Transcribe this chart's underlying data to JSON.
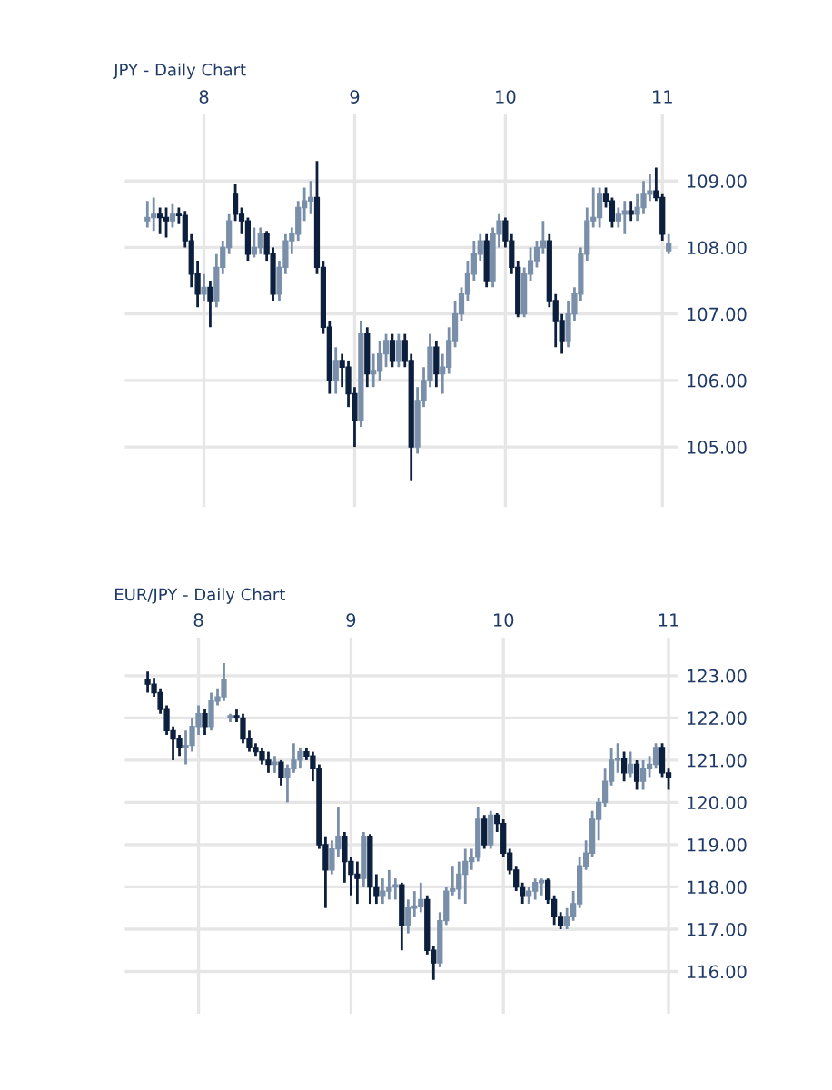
{
  "chart_data": [
    {
      "type": "candlestick",
      "title": "JPY - Daily Chart",
      "categories": [
        null,
        null,
        null,
        null,
        null,
        null,
        null,
        null,
        null,
        "8",
        null,
        null,
        null,
        null,
        null,
        null,
        null,
        null,
        null,
        null,
        null,
        null,
        null,
        null,
        null,
        null,
        null,
        null,
        null,
        null,
        null,
        null,
        null,
        "9",
        null,
        null,
        null,
        null,
        null,
        null,
        null,
        null,
        null,
        null,
        null,
        null,
        null,
        null,
        null,
        null,
        null,
        null,
        null,
        null,
        null,
        null,
        null,
        "10",
        null,
        null,
        null,
        null,
        null,
        null,
        null,
        null,
        null,
        null,
        null,
        null,
        null,
        null,
        null,
        null,
        null,
        null,
        null,
        null,
        null,
        null,
        null,
        null,
        "11",
        null
      ],
      "ohlc": [
        [
          108.4,
          108.7,
          108.3,
          108.45
        ],
        [
          108.45,
          108.75,
          108.25,
          108.5
        ],
        [
          108.5,
          108.6,
          108.2,
          108.45
        ],
        [
          108.45,
          108.6,
          108.15,
          108.4
        ],
        [
          108.4,
          108.65,
          108.3,
          108.5
        ],
        [
          108.5,
          108.6,
          108.35,
          108.48
        ],
        [
          108.48,
          108.55,
          108.0,
          108.1
        ],
        [
          108.1,
          108.2,
          107.4,
          107.6
        ],
        [
          107.6,
          107.8,
          107.1,
          107.3
        ],
        [
          107.3,
          107.6,
          107.2,
          107.4
        ],
        [
          107.4,
          107.5,
          106.8,
          107.2
        ],
        [
          107.2,
          107.9,
          107.1,
          107.7
        ],
        [
          107.7,
          108.1,
          107.6,
          108.0
        ],
        [
          108.0,
          108.5,
          107.9,
          108.4
        ],
        [
          108.8,
          108.95,
          108.4,
          108.5
        ],
        [
          108.5,
          108.6,
          108.2,
          108.4
        ],
        [
          108.4,
          108.45,
          107.8,
          107.9
        ],
        [
          107.9,
          108.3,
          107.85,
          108.0
        ],
        [
          108.0,
          108.3,
          107.9,
          108.2
        ],
        [
          108.2,
          108.25,
          107.8,
          107.9
        ],
        [
          107.9,
          108.0,
          107.2,
          107.3
        ],
        [
          107.3,
          107.8,
          107.2,
          107.7
        ],
        [
          107.7,
          108.2,
          107.6,
          108.1
        ],
        [
          108.1,
          108.3,
          107.9,
          108.2
        ],
        [
          108.2,
          108.7,
          108.1,
          108.6
        ],
        [
          108.6,
          108.9,
          108.4,
          108.7
        ],
        [
          108.7,
          109.0,
          108.5,
          108.75
        ],
        [
          108.75,
          109.3,
          107.6,
          107.7
        ],
        [
          107.7,
          107.8,
          106.7,
          106.8
        ],
        [
          106.8,
          106.9,
          105.8,
          106.0
        ],
        [
          106.0,
          106.5,
          105.8,
          106.3
        ],
        [
          106.3,
          106.4,
          105.9,
          106.2
        ],
        [
          106.2,
          106.3,
          105.6,
          105.8
        ],
        [
          105.8,
          105.9,
          105.0,
          105.4
        ],
        [
          105.4,
          106.9,
          105.3,
          106.7
        ],
        [
          106.7,
          106.8,
          105.9,
          106.1
        ],
        [
          106.1,
          106.4,
          105.9,
          106.15
        ],
        [
          106.15,
          106.6,
          106.0,
          106.4
        ],
        [
          106.4,
          106.7,
          106.2,
          106.6
        ],
        [
          106.6,
          106.7,
          106.2,
          106.3
        ],
        [
          106.3,
          106.7,
          106.2,
          106.6
        ],
        [
          106.6,
          106.7,
          106.2,
          106.3
        ],
        [
          106.3,
          106.4,
          104.5,
          105.0
        ],
        [
          105.0,
          105.9,
          104.9,
          105.7
        ],
        [
          105.7,
          106.2,
          105.6,
          106.0
        ],
        [
          106.0,
          106.7,
          105.9,
          106.5
        ],
        [
          106.5,
          106.6,
          105.9,
          106.1
        ],
        [
          106.1,
          106.4,
          105.8,
          106.2
        ],
        [
          106.2,
          106.8,
          106.1,
          106.6
        ],
        [
          106.6,
          107.2,
          106.5,
          107.0
        ],
        [
          107.0,
          107.4,
          106.9,
          107.3
        ],
        [
          107.3,
          107.8,
          107.2,
          107.6
        ],
        [
          107.6,
          108.1,
          107.5,
          107.9
        ],
        [
          107.9,
          108.2,
          107.8,
          108.1
        ],
        [
          108.1,
          108.2,
          107.4,
          107.5
        ],
        [
          107.5,
          108.3,
          107.4,
          108.2
        ],
        [
          108.2,
          108.5,
          108.0,
          108.4
        ],
        [
          108.4,
          108.45,
          108.0,
          108.1
        ],
        [
          108.1,
          108.2,
          107.6,
          107.7
        ],
        [
          107.7,
          107.8,
          106.95,
          107.0
        ],
        [
          107.0,
          107.7,
          106.95,
          107.6
        ],
        [
          107.6,
          108.0,
          107.5,
          107.8
        ],
        [
          107.8,
          108.1,
          107.7,
          108.0
        ],
        [
          108.0,
          108.4,
          107.9,
          108.1
        ],
        [
          108.1,
          108.2,
          107.1,
          107.2
        ],
        [
          107.2,
          107.3,
          106.5,
          106.9
        ],
        [
          106.9,
          107.0,
          106.4,
          106.6
        ],
        [
          106.6,
          107.2,
          106.5,
          107.0
        ],
        [
          107.0,
          107.4,
          106.9,
          107.3
        ],
        [
          107.3,
          108.0,
          107.2,
          107.9
        ],
        [
          107.9,
          108.6,
          107.8,
          108.4
        ],
        [
          108.4,
          108.9,
          108.3,
          108.45
        ],
        [
          108.45,
          108.9,
          108.3,
          108.8
        ],
        [
          108.8,
          108.9,
          108.6,
          108.7
        ],
        [
          108.7,
          108.75,
          108.3,
          108.4
        ],
        [
          108.4,
          108.6,
          108.3,
          108.5
        ],
        [
          108.5,
          108.7,
          108.2,
          108.55
        ],
        [
          108.55,
          108.7,
          108.4,
          108.5
        ],
        [
          108.5,
          108.8,
          108.4,
          108.6
        ],
        [
          108.6,
          109.0,
          108.5,
          108.8
        ],
        [
          108.8,
          109.1,
          108.7,
          108.85
        ],
        [
          108.85,
          109.2,
          108.7,
          108.75
        ],
        [
          108.75,
          108.8,
          108.1,
          108.2
        ],
        [
          107.95,
          108.2,
          107.9,
          108.05
        ]
      ],
      "colors": [
        "#7a8fa9",
        "#7a8fa9",
        "#0c1f3d",
        "#0c1f3d",
        "#7a8fa9",
        "#0c1f3d",
        "#0c1f3d",
        "#0c1f3d",
        "#0c1f3d",
        "#7a8fa9",
        "#0c1f3d",
        "#7a8fa9",
        "#7a8fa9",
        "#7a8fa9",
        "#0c1f3d",
        "#0c1f3d",
        "#0c1f3d",
        "#7a8fa9",
        "#7a8fa9",
        "#0c1f3d",
        "#0c1f3d",
        "#7a8fa9",
        "#7a8fa9",
        "#7a8fa9",
        "#7a8fa9",
        "#7a8fa9",
        "#7a8fa9",
        "#0c1f3d",
        "#0c1f3d",
        "#0c1f3d",
        "#7a8fa9",
        "#0c1f3d",
        "#0c1f3d",
        "#0c1f3d",
        "#7a8fa9",
        "#0c1f3d",
        "#7a8fa9",
        "#7a8fa9",
        "#7a8fa9",
        "#0c1f3d",
        "#7a8fa9",
        "#0c1f3d",
        "#0c1f3d",
        "#7a8fa9",
        "#7a8fa9",
        "#7a8fa9",
        "#0c1f3d",
        "#7a8fa9",
        "#7a8fa9",
        "#7a8fa9",
        "#7a8fa9",
        "#7a8fa9",
        "#7a8fa9",
        "#7a8fa9",
        "#0c1f3d",
        "#7a8fa9",
        "#7a8fa9",
        "#0c1f3d",
        "#0c1f3d",
        "#0c1f3d",
        "#7a8fa9",
        "#7a8fa9",
        "#7a8fa9",
        "#7a8fa9",
        "#0c1f3d",
        "#0c1f3d",
        "#0c1f3d",
        "#7a8fa9",
        "#7a8fa9",
        "#7a8fa9",
        "#7a8fa9",
        "#7a8fa9",
        "#7a8fa9",
        "#0c1f3d",
        "#0c1f3d",
        "#7a8fa9",
        "#7a8fa9",
        "#0c1f3d",
        "#7a8fa9",
        "#7a8fa9",
        "#7a8fa9",
        "#0c1f3d",
        "#0c1f3d",
        "#7a8fa9"
      ],
      "ylim": [
        104.1,
        110.0
      ],
      "yticks": [
        {
          "value": 105,
          "label": "105.00"
        },
        {
          "value": 106,
          "label": "106.00"
        },
        {
          "value": 107,
          "label": "107.00"
        },
        {
          "value": 108,
          "label": "108.00"
        },
        {
          "value": 109,
          "label": "109.00"
        }
      ],
      "grid": true
    },
    {
      "type": "candlestick",
      "title": "EUR/JPY - Daily Chart",
      "categories": [
        null,
        null,
        null,
        null,
        null,
        null,
        null,
        null,
        "8",
        null,
        null,
        null,
        null,
        null,
        null,
        null,
        null,
        null,
        null,
        null,
        null,
        null,
        null,
        null,
        null,
        null,
        null,
        null,
        null,
        null,
        null,
        null,
        "9",
        null,
        null,
        null,
        null,
        null,
        null,
        null,
        null,
        null,
        null,
        null,
        null,
        null,
        null,
        null,
        null,
        null,
        null,
        null,
        null,
        null,
        null,
        null,
        "10",
        null,
        null,
        null,
        null,
        null,
        null,
        null,
        null,
        null,
        null,
        null,
        null,
        null,
        null,
        null,
        null,
        null,
        null,
        null,
        null,
        null,
        null,
        null,
        null,
        null,
        "11"
      ],
      "ohlc": [
        [
          122.9,
          123.1,
          122.6,
          122.8
        ],
        [
          122.8,
          122.95,
          122.5,
          122.6
        ],
        [
          122.6,
          122.7,
          122.1,
          122.2
        ],
        [
          122.2,
          122.3,
          121.6,
          121.7
        ],
        [
          121.7,
          121.8,
          121.0,
          121.5
        ],
        [
          121.5,
          121.6,
          121.1,
          121.3
        ],
        [
          121.3,
          121.7,
          120.9,
          121.35
        ],
        [
          121.35,
          122.0,
          121.2,
          121.8
        ],
        [
          121.8,
          122.3,
          121.6,
          122.1
        ],
        [
          122.1,
          122.2,
          121.6,
          121.8
        ],
        [
          121.8,
          122.6,
          121.7,
          122.4
        ],
        [
          122.4,
          122.7,
          122.3,
          122.5
        ],
        [
          122.5,
          123.3,
          122.4,
          122.9
        ],
        [
          122.0,
          122.1,
          121.9,
          122.05
        ],
        [
          122.05,
          122.2,
          121.9,
          122.0
        ],
        [
          122.0,
          122.1,
          121.4,
          121.5
        ],
        [
          121.5,
          121.7,
          121.2,
          121.3
        ],
        [
          121.3,
          121.4,
          121.1,
          121.2
        ],
        [
          121.2,
          121.3,
          120.9,
          121.0
        ],
        [
          121.0,
          121.2,
          120.7,
          120.9
        ],
        [
          120.9,
          121.1,
          120.7,
          120.95
        ],
        [
          120.95,
          121.0,
          120.4,
          120.6
        ],
        [
          120.6,
          120.9,
          120.0,
          120.8
        ],
        [
          120.8,
          121.4,
          120.7,
          121.0
        ],
        [
          121.0,
          121.3,
          120.8,
          121.2
        ],
        [
          121.2,
          121.3,
          121.0,
          121.1
        ],
        [
          121.1,
          121.2,
          120.5,
          120.8
        ],
        [
          120.8,
          120.9,
          118.9,
          119.0
        ],
        [
          119.0,
          119.2,
          117.5,
          118.4
        ],
        [
          118.4,
          119.1,
          118.3,
          118.9
        ],
        [
          118.9,
          119.9,
          118.7,
          119.2
        ],
        [
          119.2,
          119.3,
          118.1,
          118.6
        ],
        [
          118.6,
          118.7,
          117.8,
          118.3
        ],
        [
          118.3,
          118.6,
          117.6,
          118.2
        ],
        [
          118.2,
          119.3,
          118.0,
          119.2
        ],
        [
          119.2,
          119.25,
          117.6,
          118.0
        ],
        [
          118.0,
          118.3,
          117.6,
          117.8
        ],
        [
          117.8,
          118.2,
          117.6,
          117.9
        ],
        [
          117.9,
          118.4,
          117.7,
          118.0
        ],
        [
          118.0,
          118.2,
          117.7,
          118.05
        ],
        [
          118.05,
          118.1,
          116.5,
          117.1
        ],
        [
          117.1,
          117.7,
          116.9,
          117.5
        ],
        [
          117.5,
          117.9,
          117.3,
          117.55
        ],
        [
          117.55,
          118.1,
          117.4,
          117.7
        ],
        [
          117.7,
          117.8,
          116.4,
          116.5
        ],
        [
          116.5,
          116.6,
          115.8,
          116.2
        ],
        [
          116.2,
          117.4,
          116.1,
          117.2
        ],
        [
          117.2,
          118.0,
          117.1,
          117.9
        ],
        [
          117.9,
          118.5,
          117.8,
          117.95
        ],
        [
          117.95,
          118.6,
          117.7,
          118.3
        ],
        [
          118.3,
          118.9,
          117.6,
          118.6
        ],
        [
          118.6,
          118.9,
          118.4,
          118.7
        ],
        [
          118.7,
          119.9,
          118.6,
          119.6
        ],
        [
          119.6,
          119.7,
          118.9,
          119.0
        ],
        [
          119.0,
          119.8,
          118.9,
          119.7
        ],
        [
          119.7,
          119.75,
          119.3,
          119.5
        ],
        [
          119.5,
          119.6,
          118.7,
          118.8
        ],
        [
          118.8,
          118.9,
          118.3,
          118.4
        ],
        [
          118.4,
          118.5,
          117.9,
          118.0
        ],
        [
          118.0,
          118.1,
          117.6,
          117.8
        ],
        [
          117.8,
          118.0,
          117.6,
          117.9
        ],
        [
          117.9,
          118.2,
          117.7,
          118.1
        ],
        [
          118.1,
          118.2,
          117.8,
          118.15
        ],
        [
          118.15,
          118.2,
          117.6,
          117.7
        ],
        [
          117.7,
          117.8,
          117.1,
          117.3
        ],
        [
          117.3,
          117.4,
          117.0,
          117.1
        ],
        [
          117.1,
          117.5,
          117.0,
          117.3
        ],
        [
          117.3,
          117.9,
          117.2,
          117.6
        ],
        [
          117.6,
          118.7,
          117.5,
          118.5
        ],
        [
          118.5,
          119.1,
          118.4,
          118.8
        ],
        [
          118.8,
          119.8,
          118.7,
          119.6
        ],
        [
          119.6,
          120.1,
          119.1,
          120.0
        ],
        [
          120.0,
          120.8,
          119.9,
          120.5
        ],
        [
          120.5,
          121.3,
          120.4,
          121.0
        ],
        [
          121.0,
          121.4,
          120.7,
          121.05
        ],
        [
          121.05,
          121.2,
          120.5,
          120.7
        ],
        [
          120.7,
          121.2,
          120.6,
          120.9
        ],
        [
          120.9,
          121.0,
          120.3,
          120.5
        ],
        [
          120.5,
          121.0,
          120.3,
          120.8
        ],
        [
          120.8,
          121.1,
          120.6,
          120.9
        ],
        [
          120.9,
          121.4,
          120.8,
          121.3
        ],
        [
          121.3,
          121.4,
          120.6,
          120.7
        ],
        [
          120.7,
          120.8,
          120.3,
          120.6
        ]
      ],
      "colors": [
        "#0c1f3d",
        "#0c1f3d",
        "#0c1f3d",
        "#0c1f3d",
        "#0c1f3d",
        "#0c1f3d",
        "#7a8fa9",
        "#7a8fa9",
        "#7a8fa9",
        "#0c1f3d",
        "#7a8fa9",
        "#7a8fa9",
        "#7a8fa9",
        "#7a8fa9",
        "#0c1f3d",
        "#0c1f3d",
        "#0c1f3d",
        "#0c1f3d",
        "#0c1f3d",
        "#0c1f3d",
        "#7a8fa9",
        "#0c1f3d",
        "#7a8fa9",
        "#7a8fa9",
        "#7a8fa9",
        "#0c1f3d",
        "#0c1f3d",
        "#0c1f3d",
        "#0c1f3d",
        "#7a8fa9",
        "#7a8fa9",
        "#0c1f3d",
        "#0c1f3d",
        "#0c1f3d",
        "#7a8fa9",
        "#0c1f3d",
        "#0c1f3d",
        "#7a8fa9",
        "#7a8fa9",
        "#7a8fa9",
        "#0c1f3d",
        "#7a8fa9",
        "#7a8fa9",
        "#7a8fa9",
        "#0c1f3d",
        "#0c1f3d",
        "#7a8fa9",
        "#7a8fa9",
        "#7a8fa9",
        "#7a8fa9",
        "#7a8fa9",
        "#7a8fa9",
        "#7a8fa9",
        "#0c1f3d",
        "#7a8fa9",
        "#0c1f3d",
        "#0c1f3d",
        "#0c1f3d",
        "#0c1f3d",
        "#0c1f3d",
        "#7a8fa9",
        "#7a8fa9",
        "#7a8fa9",
        "#0c1f3d",
        "#0c1f3d",
        "#0c1f3d",
        "#7a8fa9",
        "#7a8fa9",
        "#7a8fa9",
        "#7a8fa9",
        "#7a8fa9",
        "#7a8fa9",
        "#7a8fa9",
        "#7a8fa9",
        "#7a8fa9",
        "#0c1f3d",
        "#7a8fa9",
        "#0c1f3d",
        "#7a8fa9",
        "#7a8fa9",
        "#7a8fa9",
        "#0c1f3d",
        "#0c1f3d"
      ],
      "ylim": [
        115.0,
        123.9
      ],
      "yticks": [
        {
          "value": 116,
          "label": "116.00"
        },
        {
          "value": 117,
          "label": "117.00"
        },
        {
          "value": 118,
          "label": "118.00"
        },
        {
          "value": 119,
          "label": "119.00"
        },
        {
          "value": 120,
          "label": "120.00"
        },
        {
          "value": 121,
          "label": "121.00"
        },
        {
          "value": 122,
          "label": "122.00"
        },
        {
          "value": 123,
          "label": "123.00"
        }
      ],
      "grid": true
    }
  ]
}
